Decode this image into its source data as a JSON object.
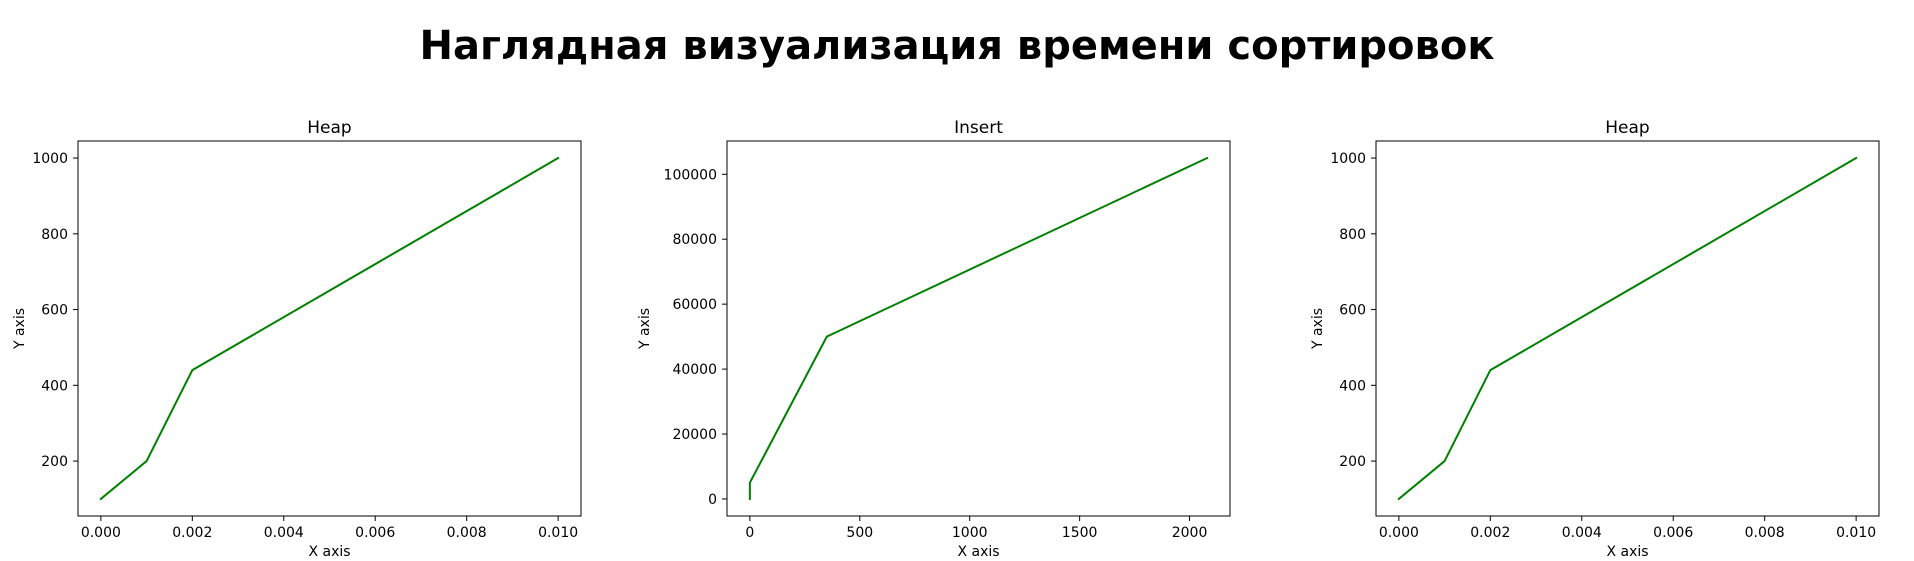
{
  "figure": {
    "title": "Наглядная визуализация времени сортировок"
  },
  "chart_data": [
    {
      "type": "line",
      "title": "Heap",
      "xlabel": "X axis",
      "ylabel": "Y axis",
      "line_color": "#008000",
      "x": [
        0.0,
        0.001,
        0.002,
        0.01
      ],
      "y": [
        100,
        200,
        440,
        1000
      ],
      "xlim": [
        -0.0005,
        0.0105
      ],
      "ylim": [
        55,
        1045
      ],
      "xticks": [
        0.0,
        0.002,
        0.004,
        0.006,
        0.008,
        0.01
      ],
      "xtick_labels": [
        "0.000",
        "0.002",
        "0.004",
        "0.006",
        "0.008",
        "0.010"
      ],
      "yticks": [
        200,
        400,
        600,
        800,
        1000
      ],
      "ytick_labels": [
        "200",
        "400",
        "600",
        "800",
        "1000"
      ],
      "grid": false
    },
    {
      "type": "line",
      "title": "Insert",
      "xlabel": "X axis",
      "ylabel": "Y axis",
      "line_color": "#008000",
      "x": [
        0,
        0,
        350,
        2080
      ],
      "y": [
        0,
        5000,
        50000,
        105000
      ],
      "xlim": [
        -104,
        2184
      ],
      "ylim": [
        -5250,
        110250
      ],
      "xticks": [
        0,
        500,
        1000,
        1500,
        2000
      ],
      "xtick_labels": [
        "0",
        "500",
        "1000",
        "1500",
        "2000"
      ],
      "yticks": [
        0,
        20000,
        40000,
        60000,
        80000,
        100000
      ],
      "ytick_labels": [
        "0",
        "20000",
        "40000",
        "60000",
        "80000",
        "100000"
      ],
      "grid": false
    },
    {
      "type": "line",
      "title": "Heap",
      "xlabel": "X axis",
      "ylabel": "Y axis",
      "line_color": "#008000",
      "x": [
        0.0,
        0.001,
        0.002,
        0.01
      ],
      "y": [
        100,
        200,
        440,
        1000
      ],
      "xlim": [
        -0.0005,
        0.0105
      ],
      "ylim": [
        55,
        1045
      ],
      "xticks": [
        0.0,
        0.002,
        0.004,
        0.006,
        0.008,
        0.01
      ],
      "xtick_labels": [
        "0.000",
        "0.002",
        "0.004",
        "0.006",
        "0.008",
        "0.010"
      ],
      "yticks": [
        200,
        400,
        600,
        800,
        1000
      ],
      "ytick_labels": [
        "200",
        "400",
        "600",
        "800",
        "1000"
      ],
      "grid": false
    }
  ]
}
